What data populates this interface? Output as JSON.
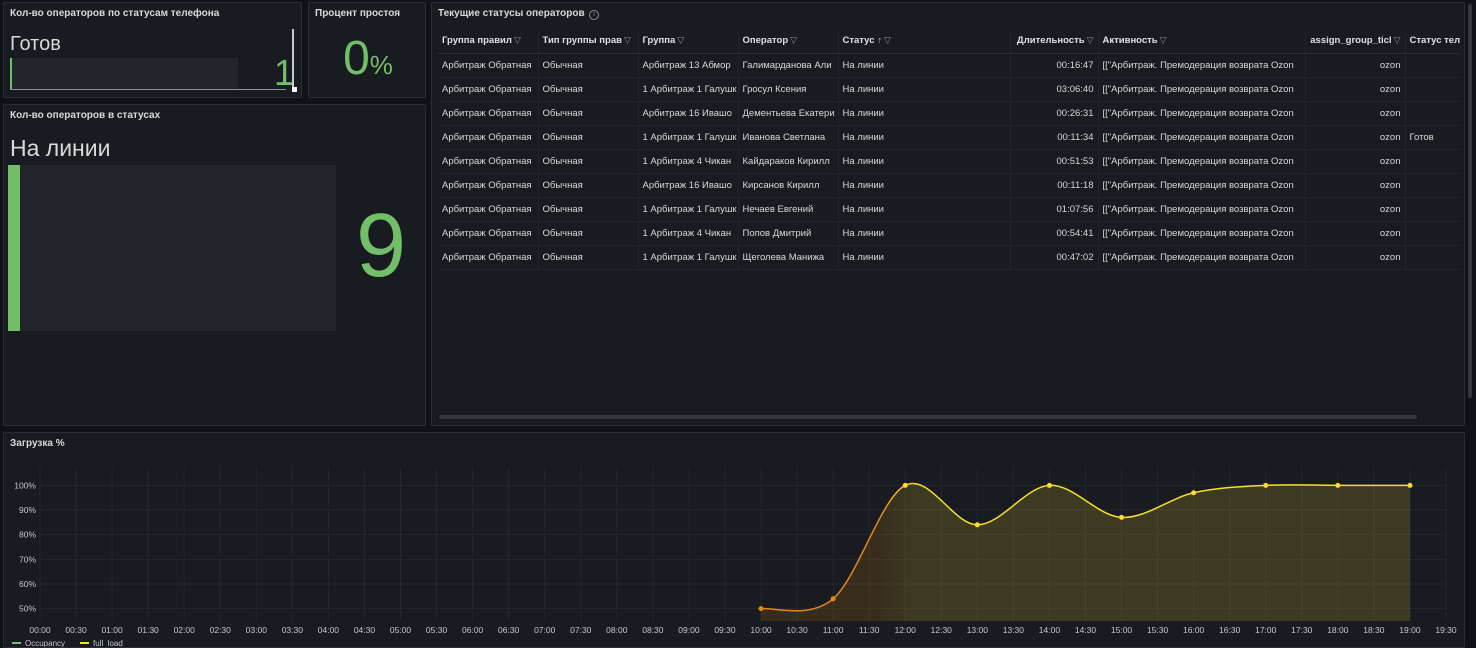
{
  "panel_phone_statuses": {
    "title": "Кол-во операторов по статусам телефона",
    "status_label": "Готов",
    "value": "1",
    "gauge_fraction": 0.11
  },
  "panel_idle": {
    "title": "Процент простоя",
    "value": "0",
    "unit": "%"
  },
  "panel_statuses": {
    "title": "Кол-во операторов в статусах",
    "status_label": "На линии",
    "value": "9",
    "gauge_fraction": 0.04
  },
  "panel_table": {
    "title": "Текущие статусы операторов",
    "info_icon": "info-icon",
    "filter_icon": "filter-icon",
    "sort_icon": "sort-ascending-icon",
    "columns": [
      "Группа правил",
      "Тип группы прав",
      "Группа",
      "Оператор",
      "Статус",
      "Длительность",
      "Активность",
      "assign_group_ticl",
      "Статус теле"
    ],
    "rows": [
      [
        "Арбитраж Обратная",
        "Обычная",
        "Арбитраж 13 Абмор",
        "Галимарданова Али",
        "На линии",
        "00:16:47",
        "[[\"Арбитраж. Премодерация возврата Ozon",
        "ozon",
        ""
      ],
      [
        "Арбитраж Обратная",
        "Обычная",
        "1 Арбитраж 1 Галушк",
        "Гросул Ксения",
        "На линии",
        "03:06:40",
        "[[\"Арбитраж. Премодерация возврата Ozon",
        "ozon",
        ""
      ],
      [
        "Арбитраж Обратная",
        "Обычная",
        "Арбитраж 16 Ивашо",
        "Дементьева Екатери",
        "На линии",
        "00:26:31",
        "[[\"Арбитраж. Премодерация возврата Ozon",
        "ozon",
        ""
      ],
      [
        "Арбитраж Обратная",
        "Обычная",
        "1 Арбитраж 1 Галушк",
        "Иванова Светлана",
        "На линии",
        "00:11:34",
        "[[\"Арбитраж. Премодерация возврата Ozon",
        "ozon",
        "Готов"
      ],
      [
        "Арбитраж Обратная",
        "Обычная",
        "1 Арбитраж 4 Чикан",
        "Кайдараков Кирилл",
        "На линии",
        "00:51:53",
        "[[\"Арбитраж. Премодерация возврата Ozon",
        "ozon",
        ""
      ],
      [
        "Арбитраж Обратная",
        "Обычная",
        "Арбитраж 16 Ивашо",
        "Кирсанов Кирилл",
        "На линии",
        "00:11:18",
        "[[\"Арбитраж. Премодерация возврата Ozon",
        "ozon",
        ""
      ],
      [
        "Арбитраж Обратная",
        "Обычная",
        "1 Арбитраж 1 Галушк",
        "Нечаев Евгений",
        "На линии",
        "01:07:56",
        "[[\"Арбитраж. Премодерация возврата Ozon",
        "ozon",
        ""
      ],
      [
        "Арбитраж Обратная",
        "Обычная",
        "1 Арбитраж 4 Чикан",
        "Попов Дмитрий",
        "На линии",
        "00:54:41",
        "[[\"Арбитраж. Премодерация возврата Ozon",
        "ozon",
        ""
      ],
      [
        "Арбитраж Обратная",
        "Обычная",
        "1 Арбитраж 1 Галушк",
        "Щеголева Манижа",
        "На линии",
        "00:47:02",
        "[[\"Арбитраж. Премодерация возврата Ozon",
        "ozon",
        ""
      ]
    ]
  },
  "panel_load": {
    "title": "Загрузка %"
  },
  "colors": {
    "background": "#111217",
    "panel": "#181b1f",
    "green": "#73bf69",
    "yellow": "#fade2a",
    "orange": "#e08a14"
  },
  "chart_data": {
    "type": "area",
    "title": "Загрузка %",
    "x_ticks": [
      "00:00",
      "00:30",
      "01:00",
      "01:30",
      "02:00",
      "02:30",
      "03:00",
      "03:30",
      "04:00",
      "04:30",
      "05:00",
      "05:30",
      "06:00",
      "06:30",
      "07:00",
      "07:30",
      "08:00",
      "08:30",
      "09:00",
      "09:30",
      "10:00",
      "10:30",
      "11:00",
      "11:30",
      "12:00",
      "12:30",
      "13:00",
      "13:30",
      "14:00",
      "14:30",
      "15:00",
      "15:30",
      "16:00",
      "16:30",
      "17:00",
      "17:30",
      "18:00",
      "18:30",
      "19:00",
      "19:30"
    ],
    "y_ticks": [
      "50%",
      "60%",
      "70%",
      "80%",
      "90%",
      "100%"
    ],
    "ylim": [
      45,
      105
    ],
    "xlim_hours": [
      0,
      19.5
    ],
    "grid": true,
    "legend_position": "bottom-left",
    "series": [
      {
        "name": "Occupancy",
        "color": "#73bf69",
        "x_hours": [],
        "values": []
      },
      {
        "name": "full_load",
        "color": "#fade2a",
        "x_hours": [
          10,
          11,
          12,
          13,
          14,
          15,
          16,
          17,
          18,
          19
        ],
        "values": [
          50,
          54,
          100,
          84,
          100,
          87,
          97,
          100,
          100,
          100
        ]
      }
    ]
  }
}
